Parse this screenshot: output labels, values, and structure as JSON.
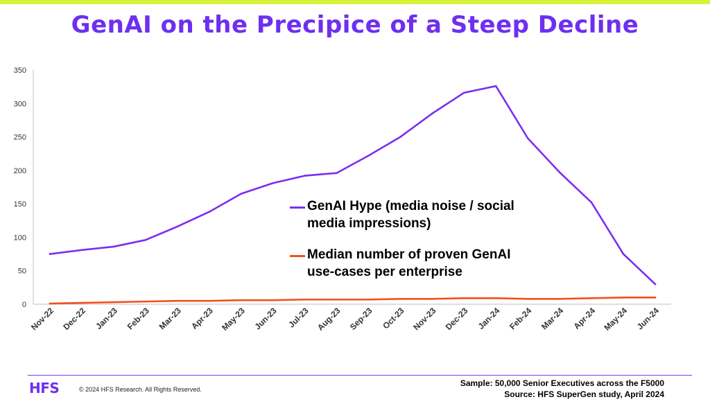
{
  "title": "GenAI on the Precipice of a Steep Decline",
  "colors": {
    "accent": "#6e2ff0",
    "hype": "#7a2ff0",
    "usecases": "#f2501e",
    "topbar": "#d8f23a"
  },
  "footer": {
    "logo": "HFS",
    "copyright": "© 2024 HFS Research. All Rights Reserved.",
    "sample": "Sample: 50,000 Senior Executives across the F5000",
    "source": "Source: HFS SuperGen study, April 2024"
  },
  "chart_data": {
    "type": "line",
    "categories": [
      "Nov-22",
      "Dec-22",
      "Jan-23",
      "Feb-23",
      "Mar-23",
      "Apr-23",
      "May-23",
      "Jun-23",
      "Jul-23",
      "Aug-23",
      "Sep-23",
      "Oct-23",
      "Nov-23",
      "Dec-23",
      "Jan-24",
      "Feb-24",
      "Mar-24",
      "Apr-24",
      "May-24",
      "Jun-24"
    ],
    "ylim": [
      0,
      350
    ],
    "yticks": [
      "0",
      "50",
      "100",
      "150",
      "200",
      "250",
      "300",
      "350"
    ],
    "grid": false,
    "legend_position": "center-right",
    "series": [
      {
        "name": "GenAI Hype (media noise / social media impressions)",
        "legend_lines": [
          "GenAI Hype (media noise / social",
          "media impressions)"
        ],
        "color": "#7a2ff0",
        "values": [
          75,
          81,
          86,
          96,
          116,
          138,
          165,
          181,
          192,
          196,
          222,
          250,
          285,
          316,
          326,
          248,
          197,
          152,
          75,
          30
        ]
      },
      {
        "name": "Median number of proven GenAI use-cases per enterprise",
        "legend_lines": [
          "Median number of proven GenAI",
          "use-cases per enterprise"
        ],
        "color": "#f2501e",
        "values": [
          1,
          2,
          3,
          4,
          5,
          5,
          6,
          6,
          7,
          7,
          7,
          8,
          8,
          9,
          9,
          8,
          8,
          9,
          10,
          10
        ]
      }
    ]
  }
}
